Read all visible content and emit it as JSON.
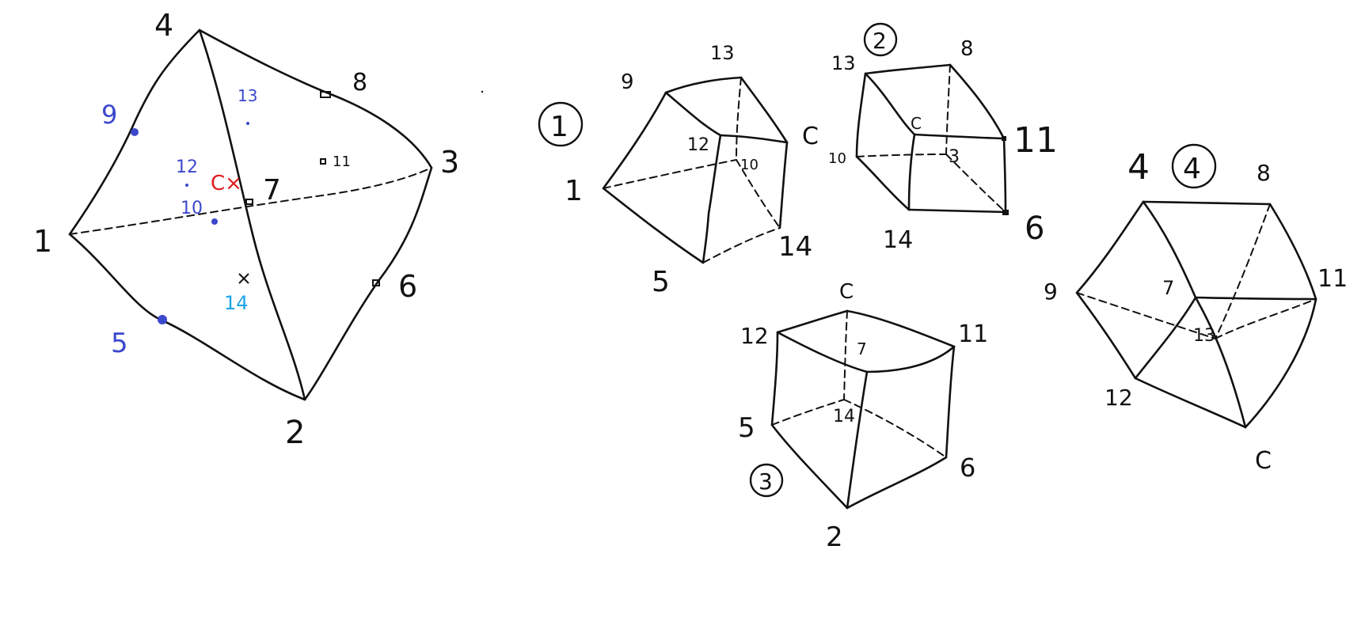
{
  "colors": {
    "ink": "#111111",
    "blue_label": "#3b48cc",
    "cyan_label": "#1aa3e8",
    "red_label": "#e01a1a"
  },
  "main_tet": {
    "vertices": {
      "v1": "1",
      "v2": "2",
      "v3": "3",
      "v4": "4"
    },
    "edge_points": {
      "p5": "5",
      "p6": "6",
      "p7": "7",
      "p8": "8",
      "p9": "9",
      "p10": "10"
    },
    "face_points": {
      "p11": "11",
      "p12": "12",
      "p13": "13",
      "p14": "14"
    },
    "centroid": "C×"
  },
  "cell1": {
    "number": "1",
    "labels": {
      "n9": "9",
      "n13": "13",
      "nC": "C",
      "n12": "12",
      "n10": "10",
      "n1": "1",
      "n5": "5",
      "n14": "14"
    }
  },
  "cell2": {
    "number": "2",
    "labels": {
      "n13": "13",
      "n8": "8",
      "nC": "C",
      "n11": "11",
      "n10": "10",
      "n3": "3",
      "n14": "14",
      "n6": "6"
    }
  },
  "cell3": {
    "number": "3",
    "labels": {
      "nC": "C",
      "n12": "12",
      "n11": "11",
      "n7": "7",
      "n5": "5",
      "n14": "14",
      "n6": "6",
      "n2": "2"
    }
  },
  "cell4": {
    "number": "4",
    "labels": {
      "n4": "4",
      "n8": "8",
      "n9": "9",
      "n7": "7",
      "n11": "11",
      "n13": "13",
      "n12": "12",
      "nC": "C"
    }
  }
}
